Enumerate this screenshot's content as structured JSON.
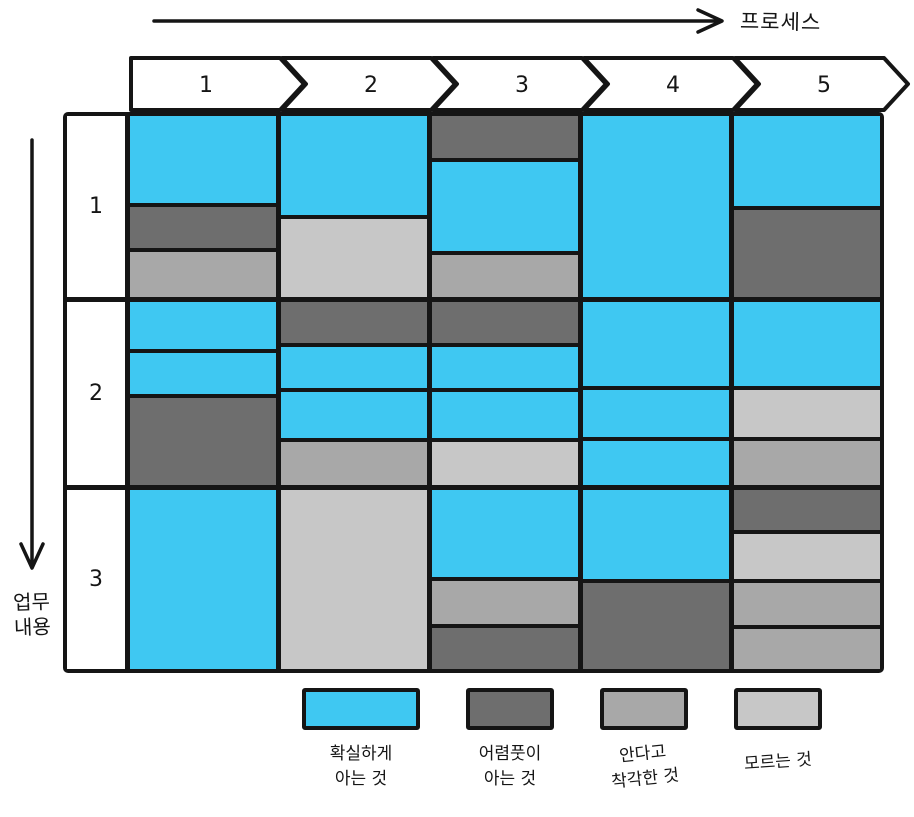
{
  "axes": {
    "process_label": "프로세스",
    "content_label": "업무\n내용"
  },
  "process_steps": [
    "1",
    "2",
    "3",
    "4",
    "5"
  ],
  "content_rows": [
    "1",
    "2",
    "3"
  ],
  "palette": {
    "certain": "#3fc8f2",
    "vague": "#6e6e6e",
    "mistaken": "#a8a8a8",
    "unknown": "#c7c7c7"
  },
  "legend": [
    {
      "key": "certain",
      "label": "확실하게\n아는 것"
    },
    {
      "key": "vague",
      "label": "어렴풋이\n아는 것"
    },
    {
      "key": "mistaken",
      "label": "안다고\n착각한 것"
    },
    {
      "key": "unknown",
      "label": "모르는 것"
    }
  ],
  "grid": [
    {
      "row": "1",
      "cells": [
        {
          "col": "1",
          "bands": [
            {
              "color": "certain",
              "size": 50
            },
            {
              "color": "vague",
              "size": 24
            },
            {
              "color": "mistaken",
              "size": 26
            }
          ]
        },
        {
          "col": "2",
          "bands": [
            {
              "color": "certain",
              "size": 56
            },
            {
              "color": "unknown",
              "size": 44
            }
          ]
        },
        {
          "col": "3",
          "bands": [
            {
              "color": "vague",
              "size": 24
            },
            {
              "color": "certain",
              "size": 52
            },
            {
              "color": "mistaken",
              "size": 24
            }
          ]
        },
        {
          "col": "4",
          "bands": [
            {
              "color": "certain",
              "size": 100
            }
          ]
        },
        {
          "col": "5",
          "bands": [
            {
              "color": "certain",
              "size": 51
            },
            {
              "color": "vague",
              "size": 49
            }
          ]
        }
      ]
    },
    {
      "row": "2",
      "cells": [
        {
          "col": "1",
          "bands": [
            {
              "color": "certain",
              "size": 27
            },
            {
              "color": "certain",
              "size": 23
            },
            {
              "color": "vague",
              "size": 50
            }
          ]
        },
        {
          "col": "2",
          "bands": [
            {
              "color": "vague",
              "size": 24
            },
            {
              "color": "certain",
              "size": 24
            },
            {
              "color": "certain",
              "size": 27
            },
            {
              "color": "mistaken",
              "size": 25
            }
          ]
        },
        {
          "col": "3",
          "bands": [
            {
              "color": "vague",
              "size": 24
            },
            {
              "color": "certain",
              "size": 24
            },
            {
              "color": "certain",
              "size": 27
            },
            {
              "color": "unknown",
              "size": 25
            }
          ]
        },
        {
          "col": "4",
          "bands": [
            {
              "color": "certain",
              "size": 48
            },
            {
              "color": "certain",
              "size": 27
            },
            {
              "color": "certain",
              "size": 25
            }
          ]
        },
        {
          "col": "5",
          "bands": [
            {
              "color": "certain",
              "size": 48
            },
            {
              "color": "unknown",
              "size": 27
            },
            {
              "color": "mistaken",
              "size": 25
            }
          ]
        }
      ]
    },
    {
      "row": "3",
      "cells": [
        {
          "col": "1",
          "bands": [
            {
              "color": "certain",
              "size": 100
            }
          ]
        },
        {
          "col": "2",
          "bands": [
            {
              "color": "unknown",
              "size": 100
            }
          ]
        },
        {
          "col": "3",
          "bands": [
            {
              "color": "certain",
              "size": 51
            },
            {
              "color": "mistaken",
              "size": 25
            },
            {
              "color": "vague",
              "size": 24
            }
          ]
        },
        {
          "col": "4",
          "bands": [
            {
              "color": "certain",
              "size": 51
            },
            {
              "color": "vague",
              "size": 49
            }
          ]
        },
        {
          "col": "5",
          "bands": [
            {
              "color": "vague",
              "size": 24
            },
            {
              "color": "unknown",
              "size": 27
            },
            {
              "color": "mistaken",
              "size": 25
            },
            {
              "color": "mistaken",
              "size": 24
            }
          ]
        }
      ]
    }
  ]
}
